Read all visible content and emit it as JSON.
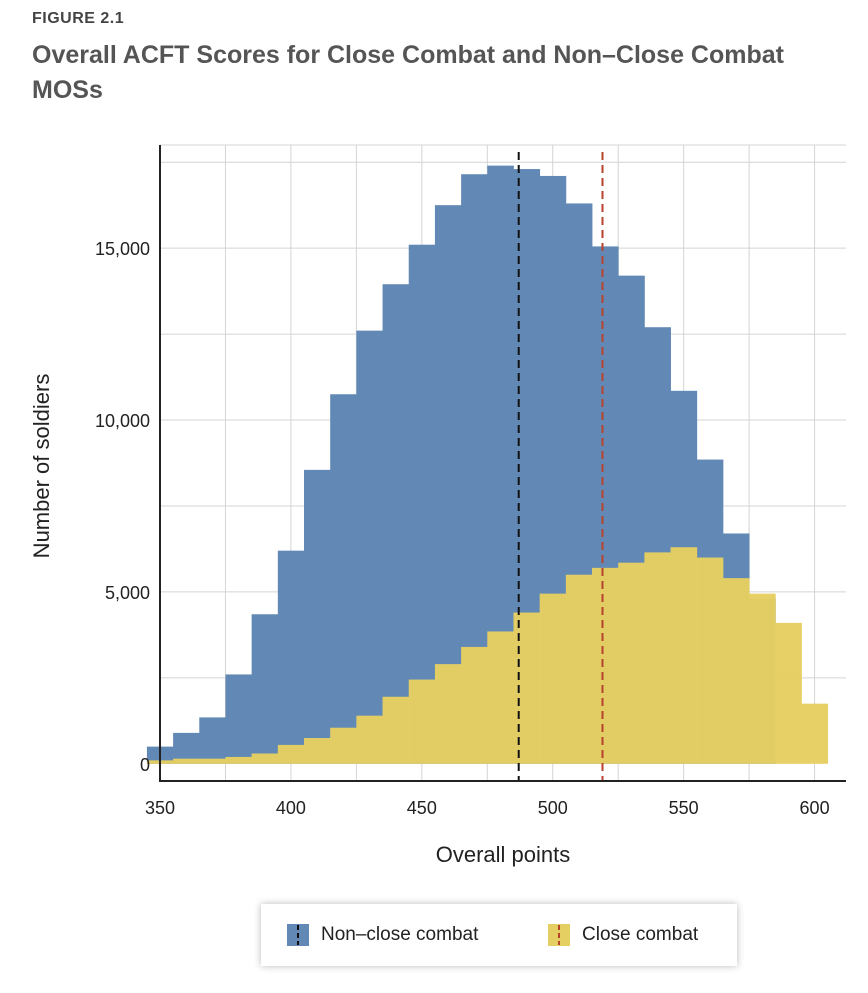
{
  "figure": {
    "label": "FIGURE 2.1",
    "title": "Overall ACFT Scores for Close Combat and Non–Close Combat MOSs"
  },
  "chart_data": {
    "type": "bar",
    "subtype": "overlapping histogram",
    "xlabel": "Overall points",
    "ylabel": "Number of soldiers",
    "xlim": [
      350,
      612
    ],
    "ylim": [
      -500,
      18000
    ],
    "xticks": [
      350,
      400,
      450,
      500,
      550,
      600
    ],
    "yticks": [
      0,
      5000,
      10000,
      15000
    ],
    "ytick_labels": [
      "0",
      "5,000",
      "10,000",
      "15,000"
    ],
    "bin_width": 10,
    "bin_edges": [
      345,
      355,
      365,
      375,
      385,
      395,
      405,
      415,
      425,
      435,
      445,
      455,
      465,
      475,
      485,
      495,
      505,
      515,
      525,
      535,
      545,
      555,
      565,
      575,
      585,
      595,
      605
    ],
    "series": [
      {
        "name": "Non–close combat",
        "color": "#6289b5",
        "values": [
          500,
          900,
          1350,
          2600,
          4350,
          6200,
          8550,
          10750,
          12600,
          13950,
          15100,
          16250,
          17150,
          17400,
          17300,
          17100,
          16300,
          15050,
          14200,
          12700,
          10850,
          8850,
          6700,
          4800,
          0,
          0
        ]
      },
      {
        "name": "Close combat",
        "color": "#e6cf62",
        "values": [
          100,
          150,
          150,
          200,
          300,
          550,
          750,
          1050,
          1400,
          1950,
          2450,
          2900,
          3400,
          3850,
          4400,
          4950,
          5500,
          5700,
          5850,
          6150,
          6300,
          6000,
          5400,
          4950,
          4100,
          1750
        ]
      }
    ],
    "reference_lines": [
      {
        "series": "Non–close combat",
        "x": 487,
        "color": "#111111",
        "style": "dashed"
      },
      {
        "series": "Close combat",
        "x": 519,
        "color": "#b7432d",
        "style": "dashed"
      }
    ],
    "legend": {
      "placement": "bottom-center",
      "items": [
        "Non–close combat",
        "Close combat"
      ]
    }
  }
}
